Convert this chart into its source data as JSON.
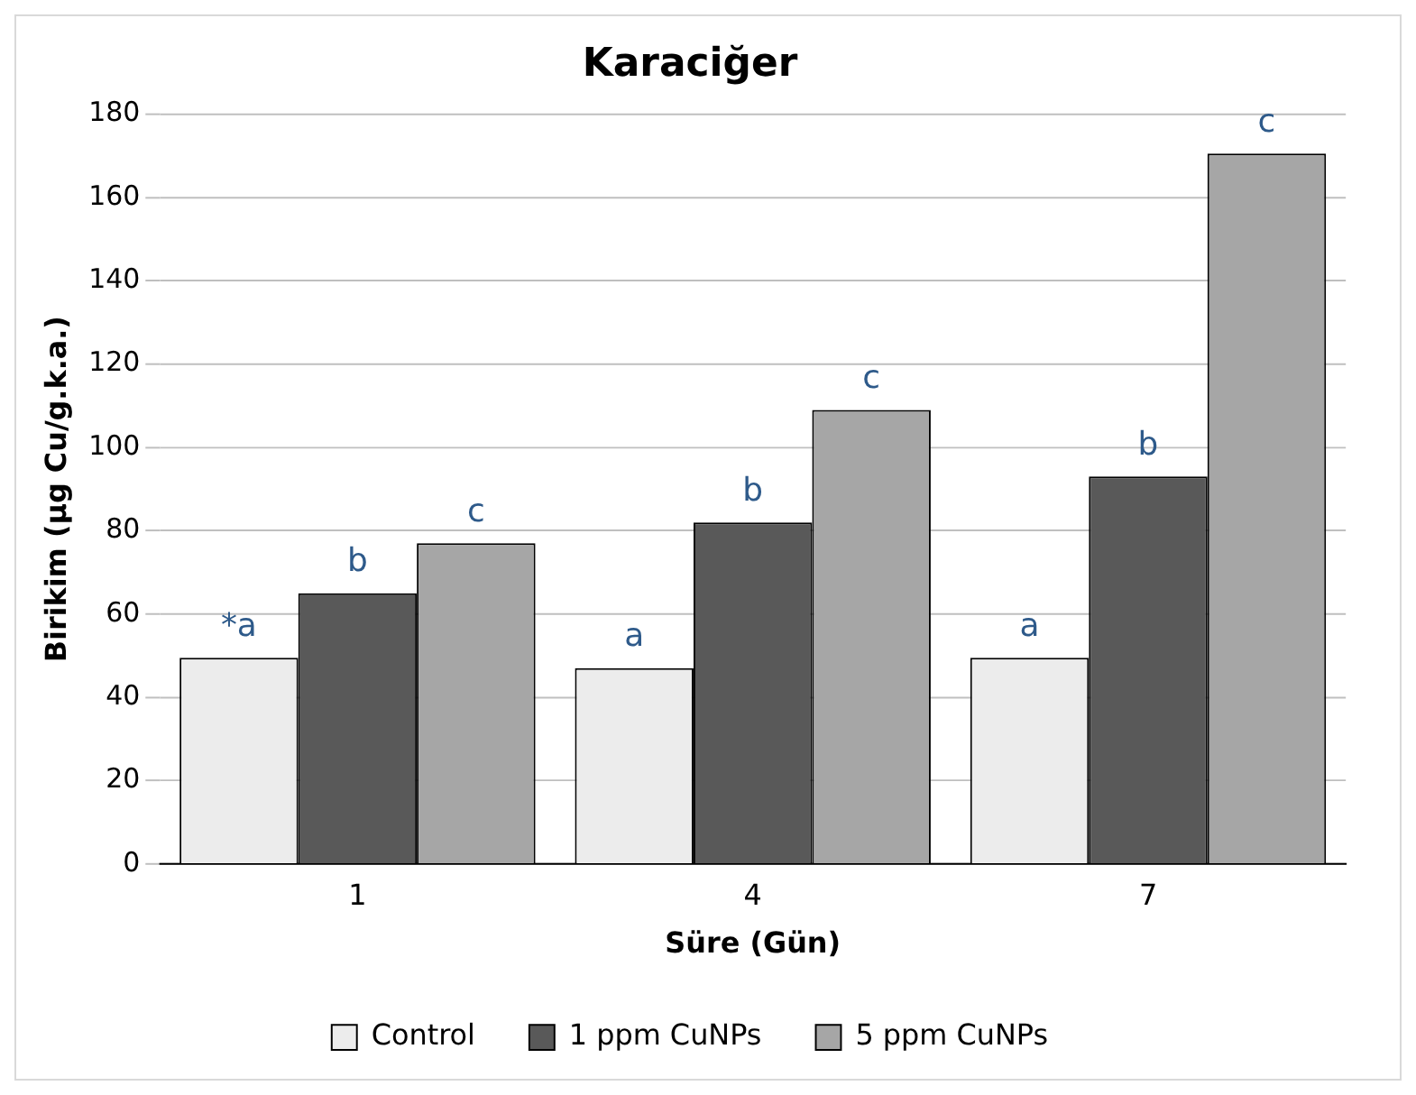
{
  "chart_data": {
    "type": "bar",
    "title": "Karaciğer",
    "xlabel": "Süre (Gün)",
    "ylabel": "Birikim (µg Cu/g.k.a.)",
    "categories": [
      "1",
      "4",
      "7"
    ],
    "series": [
      {
        "name": "Control",
        "color": "#ececec",
        "values": [
          49.5,
          47,
          49.5
        ],
        "value_labels": [
          "*a",
          "a",
          "a"
        ]
      },
      {
        "name": "1 ppm CuNPs",
        "color": "#595959",
        "values": [
          65,
          82,
          93
        ],
        "value_labels": [
          "b",
          "b",
          "b"
        ]
      },
      {
        "name": "5 ppm CuNPs",
        "color": "#a6a6a6",
        "values": [
          77,
          109,
          170.5
        ],
        "value_labels": [
          "c",
          "c",
          "c"
        ]
      }
    ],
    "ylim": [
      0,
      180
    ],
    "yticks": [
      0,
      20,
      40,
      60,
      80,
      100,
      120,
      140,
      160,
      180
    ],
    "grid": "y",
    "legend": "bottom"
  }
}
